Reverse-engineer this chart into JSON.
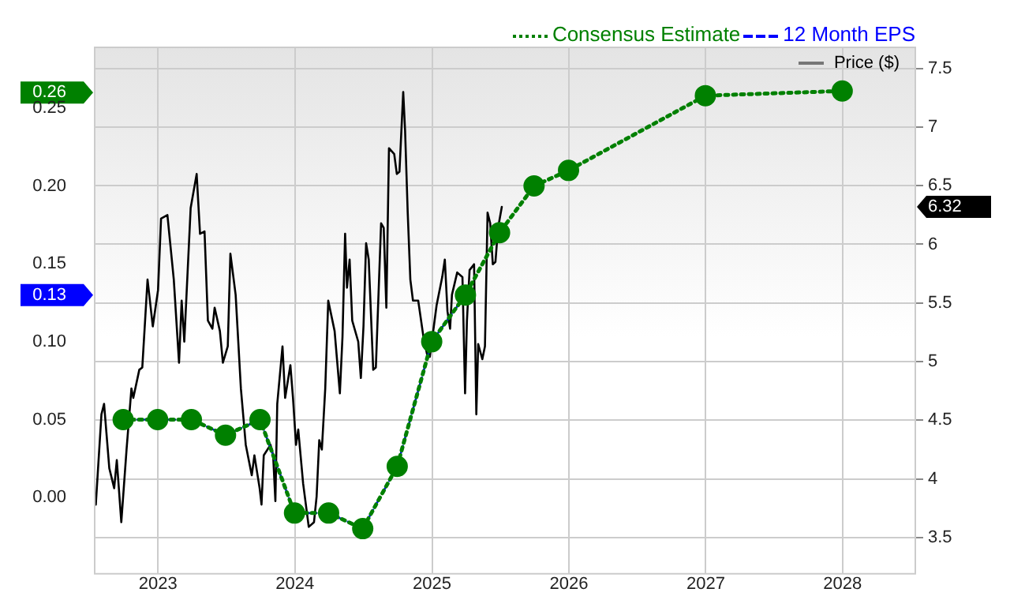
{
  "chart_data": {
    "type": "line",
    "legend": "top right",
    "grid": true,
    "xlim": [
      "2022-07-16",
      "2028-07-13"
    ],
    "xticks": [
      {
        "value": "2023-01-01",
        "label": "2023"
      },
      {
        "value": "2024-01-01",
        "label": "2024"
      },
      {
        "value": "2025-01-01",
        "label": "2025"
      },
      {
        "value": "2026-01-01",
        "label": "2026"
      },
      {
        "value": "2027-01-01",
        "label": "2027"
      },
      {
        "value": "2028-01-01",
        "label": "2028"
      }
    ],
    "ylim": [
      -0.049,
      0.289
    ],
    "yticks": [
      {
        "value": 0,
        "label": "0.00"
      },
      {
        "value": 0.05,
        "label": "0.05"
      },
      {
        "value": 0.1,
        "label": "0.10"
      },
      {
        "value": 0.13,
        "label": "0.13"
      },
      {
        "value": 0.15,
        "label": "0.15"
      },
      {
        "value": 0.2,
        "label": "0.20"
      },
      {
        "value": 0.25,
        "label": "0.25"
      },
      {
        "value": 0.26,
        "label": "0.26"
      }
    ],
    "y2lim": [
      3.19,
      7.68
    ],
    "y2ticks": [
      3.5,
      4,
      4.5,
      5,
      5.5,
      6,
      6.32,
      6.5,
      7,
      7.5
    ],
    "series": [
      {
        "name": "Consensus Estimate",
        "color": "#008000",
        "marker": "circle",
        "line_style": "dotted",
        "x": [
          "2022-09-30",
          "2022-12-31",
          "2023-03-31",
          "2023-06-30",
          "2023-09-30",
          "2023-12-31",
          "2024-03-31",
          "2024-06-30",
          "2024-09-30",
          "2024-12-31",
          "2025-03-31",
          "2025-06-30",
          "2025-09-30",
          "2025-12-31",
          "2026-12-31",
          "2027-12-31"
        ],
        "values": [
          0.05,
          0.05,
          0.05,
          0.04,
          0.05,
          -0.01,
          -0.01,
          -0.02,
          0.02,
          0.1,
          0.13,
          0.17,
          0.2,
          0.21,
          0.258,
          0.261
        ]
      },
      {
        "name": "12 Month EPS",
        "color": "#0000ff",
        "marker": "none",
        "line_style": "dashed",
        "x": [
          "2022-09-30",
          "2022-12-31",
          "2023-03-31",
          "2023-06-30",
          "2023-09-30",
          "2023-12-31",
          "2024-03-31",
          "2024-06-30",
          "2024-09-30",
          "2024-12-31",
          "2025-03-31"
        ],
        "values": [
          0.05,
          0.05,
          0.05,
          0.04,
          0.05,
          -0.01,
          -0.01,
          -0.02,
          0.02,
          0.1,
          0.13
        ]
      },
      {
        "name": "Price ($)",
        "color": "#000000",
        "axis": "y2",
        "marker": "none",
        "line_style": "solid",
        "x": [
          "2022-07-19",
          "2022-08-03",
          "2022-08-10",
          "2022-08-24",
          "2022-09-06",
          "2022-09-13",
          "2022-09-25",
          "2022-10-09",
          "2022-10-22",
          "2022-10-27",
          "2022-11-12",
          "2022-11-20",
          "2022-12-04",
          "2022-12-18",
          "2023-01-01",
          "2023-01-09",
          "2023-01-26",
          "2023-02-12",
          "2023-02-26",
          "2023-03-05",
          "2023-03-12",
          "2023-03-29",
          "2023-04-14",
          "2023-04-23",
          "2023-05-05",
          "2023-05-14",
          "2023-05-26",
          "2023-06-01",
          "2023-06-15",
          "2023-06-23",
          "2023-07-06",
          "2023-07-13",
          "2023-07-27",
          "2023-08-10",
          "2023-08-23",
          "2023-09-08",
          "2023-09-15",
          "2023-09-29",
          "2023-10-04",
          "2023-10-10",
          "2023-10-28",
          "2023-11-04",
          "2023-11-10",
          "2023-11-15",
          "2023-11-29",
          "2023-12-06",
          "2023-12-20",
          "2023-12-27",
          "2024-01-04",
          "2024-01-10",
          "2024-01-23",
          "2024-02-07",
          "2024-02-21",
          "2024-02-28",
          "2024-03-06",
          "2024-03-13",
          "2024-03-22",
          "2024-03-30",
          "2024-04-16",
          "2024-04-30",
          "2024-05-07",
          "2024-05-14",
          "2024-05-19",
          "2024-05-26",
          "2024-06-02",
          "2024-06-18",
          "2024-06-25",
          "2024-07-02",
          "2024-07-09",
          "2024-07-16",
          "2024-07-28",
          "2024-08-04",
          "2024-08-18",
          "2024-08-25",
          "2024-09-01",
          "2024-09-08",
          "2024-09-22",
          "2024-09-29",
          "2024-10-06",
          "2024-10-16",
          "2024-10-21",
          "2024-10-28",
          "2024-11-04",
          "2024-11-11",
          "2024-11-25",
          "2024-12-09",
          "2024-12-20",
          "2024-12-26",
          "2025-01-13",
          "2025-01-28",
          "2025-02-04",
          "2025-02-11",
          "2025-02-18",
          "2025-02-23",
          "2025-03-09",
          "2025-03-23",
          "2025-03-30",
          "2025-04-04",
          "2025-04-11",
          "2025-04-23",
          "2025-04-29",
          "2025-05-04",
          "2025-05-15",
          "2025-05-22",
          "2025-05-29",
          "2025-06-05",
          "2025-06-12",
          "2025-06-19",
          "2025-06-26",
          "2025-07-06"
        ],
        "values": [
          3.78,
          4.55,
          4.64,
          4.09,
          3.92,
          4.16,
          3.63,
          4.25,
          4.77,
          4.69,
          4.93,
          4.95,
          5.7,
          5.3,
          5.61,
          6.22,
          6.25,
          5.7,
          4.99,
          5.52,
          5.17,
          6.31,
          6.6,
          6.09,
          6.11,
          5.35,
          5.28,
          5.46,
          5.26,
          4.99,
          5.13,
          5.92,
          5.57,
          4.77,
          4.29,
          4.03,
          4.2,
          3.92,
          3.78,
          4.2,
          4.29,
          4.2,
          3.81,
          4.64,
          5.13,
          4.69,
          4.97,
          4.69,
          4.29,
          4.42,
          3.96,
          3.59,
          3.63,
          3.85,
          4.33,
          4.25,
          4.77,
          5.52,
          5.26,
          4.73,
          5.21,
          6.09,
          5.63,
          5.87,
          5.35,
          5.17,
          4.86,
          5.3,
          6.01,
          5.87,
          4.93,
          4.95,
          6.18,
          6.14,
          5.46,
          6.82,
          6.77,
          6.6,
          6.62,
          7.3,
          6.97,
          6.27,
          5.7,
          5.52,
          5.52,
          5.21,
          5.04,
          5.04,
          5.48,
          5.72,
          5.87,
          5.43,
          5.28,
          5.57,
          5.76,
          5.72,
          4.73,
          5.35,
          5.78,
          5.83,
          4.55,
          5.15,
          5.02,
          5.13,
          6.27,
          6.18,
          5.83,
          5.85,
          6.14,
          6.32
        ]
      }
    ]
  }
}
